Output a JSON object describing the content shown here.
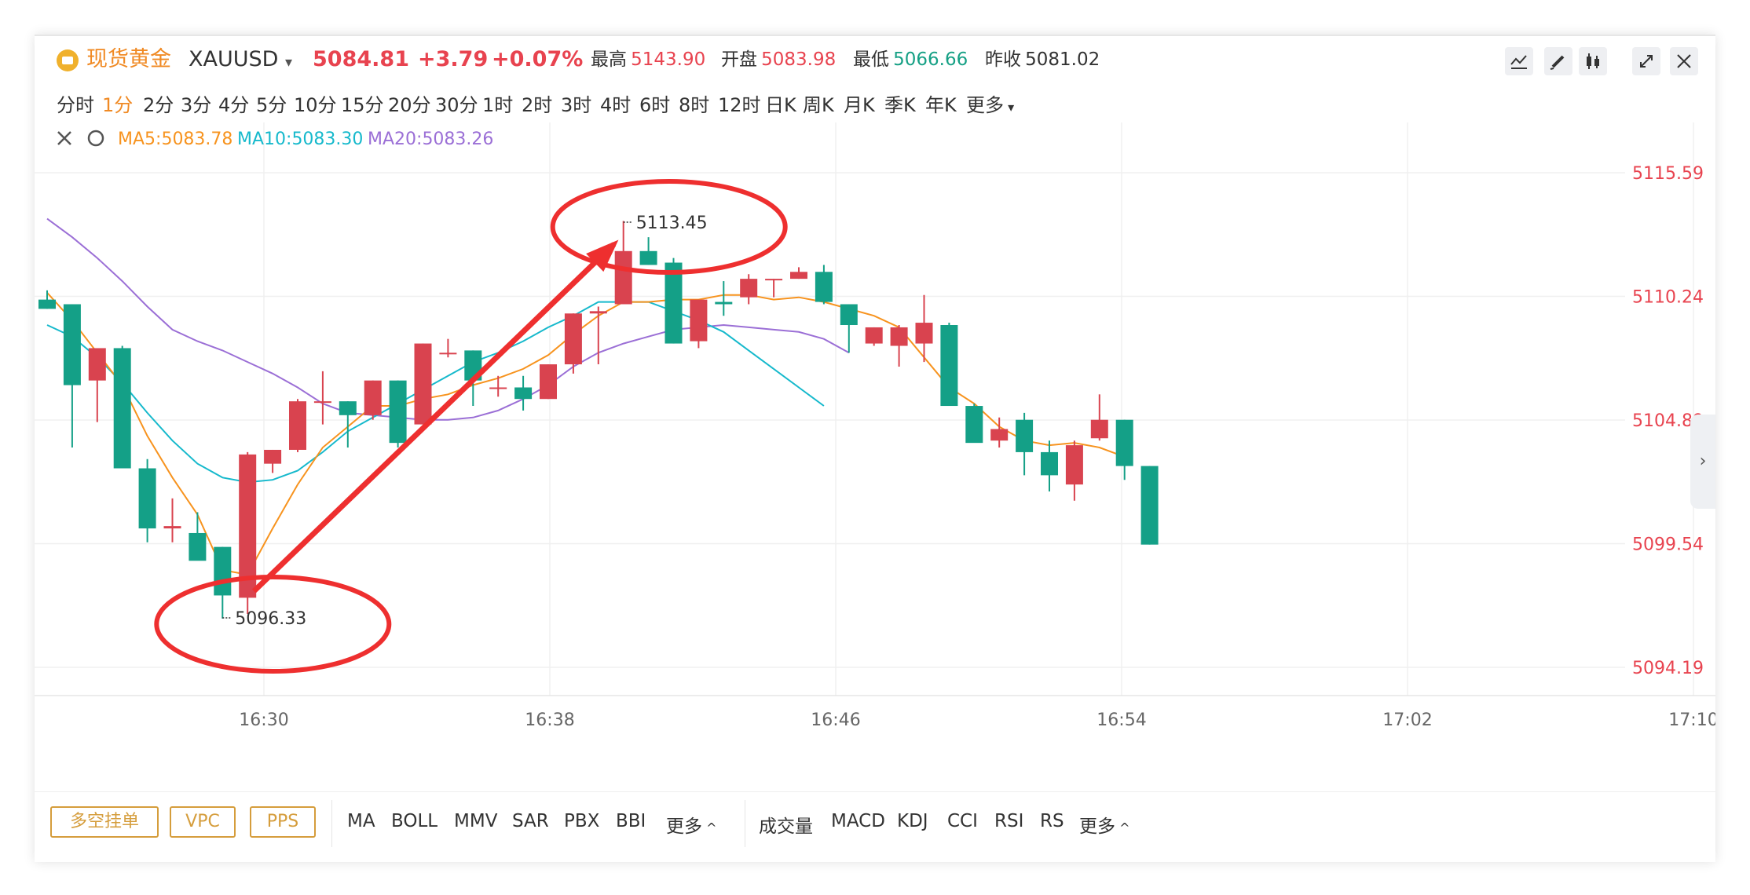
{
  "header": {
    "title": "现货黄金",
    "symbol": "XAUUSD",
    "price": "5084.81",
    "change": "+3.79",
    "change_pct": "+0.07%",
    "stats": [
      {
        "label": "最高",
        "value": "5143.90",
        "color": "red"
      },
      {
        "label": "开盘",
        "value": "5083.98",
        "color": "red"
      },
      {
        "label": "最低",
        "value": "5066.66",
        "color": "green"
      },
      {
        "label": "昨收",
        "value": "5081.02",
        "color": "dark"
      }
    ],
    "tools": [
      "indicator-icon",
      "draw-pen-icon",
      "candlestick-icon",
      "collapse-icon",
      "close-icon"
    ]
  },
  "periods": [
    "分时",
    "1分",
    "2分",
    "3分",
    "4分",
    "5分",
    "10分",
    "15分",
    "20分",
    "30分",
    "1时",
    "2时",
    "3时",
    "4时",
    "6时",
    "8时",
    "12时",
    "日K",
    "周K",
    "月K",
    "季K",
    "年K",
    "更多"
  ],
  "active_period": "1分",
  "ma_legend": [
    {
      "label": "MA5:5083.78",
      "color": "#f7931e"
    },
    {
      "label": "MA10:5083.30",
      "color": "#16b9cc"
    },
    {
      "label": "MA20:5083.26",
      "color": "#9b6fd6"
    }
  ],
  "toolbar": {
    "pills": [
      "多空挂单",
      "VPC",
      "PPS"
    ],
    "main_indicators": [
      "MA",
      "BOLL",
      "MMV",
      "SAR",
      "PBX",
      "BBI",
      "更多"
    ],
    "sub_indicators": [
      "成交量",
      "MACD",
      "KDJ",
      "CCI",
      "RSI",
      "RS",
      "更多"
    ]
  },
  "chart_data": {
    "type": "candlestick",
    "x_ticks": [
      "16:30",
      "16:38",
      "16:46",
      "16:54",
      "17:02",
      "17:10"
    ],
    "y_ticks": [
      5115.59,
      5110.24,
      5104.89,
      5099.54,
      5094.19
    ],
    "ylim": [
      5094.19,
      5115.59
    ],
    "annotations": [
      {
        "text": "5096.33",
        "value": 5096.33
      },
      {
        "text": "5113.45",
        "value": 5113.45
      }
    ],
    "candles": [
      {
        "o": 5110.1,
        "h": 5110.5,
        "l": 5109.7,
        "c": 5109.7
      },
      {
        "o": 5109.9,
        "h": 5109.9,
        "l": 5103.7,
        "c": 5106.4
      },
      {
        "o": 5106.6,
        "h": 5108.0,
        "l": 5104.8,
        "c": 5108.0
      },
      {
        "o": 5108.0,
        "h": 5108.1,
        "l": 5102.8,
        "c": 5102.8
      },
      {
        "o": 5102.8,
        "h": 5103.2,
        "l": 5099.6,
        "c": 5100.2
      },
      {
        "o": 5100.2,
        "h": 5101.5,
        "l": 5099.6,
        "c": 5100.3
      },
      {
        "o": 5100.0,
        "h": 5100.9,
        "l": 5098.9,
        "c": 5098.8
      },
      {
        "o": 5099.4,
        "h": 5099.4,
        "l": 5096.3,
        "c": 5097.3
      },
      {
        "o": 5097.2,
        "h": 5103.5,
        "l": 5096.5,
        "c": 5103.4
      },
      {
        "o": 5103.0,
        "h": 5103.6,
        "l": 5102.6,
        "c": 5103.6
      },
      {
        "o": 5103.6,
        "h": 5105.8,
        "l": 5103.5,
        "c": 5105.7
      },
      {
        "o": 5105.7,
        "h": 5107.0,
        "l": 5104.7,
        "c": 5105.7
      },
      {
        "o": 5105.7,
        "h": 5105.7,
        "l": 5103.7,
        "c": 5105.1
      },
      {
        "o": 5105.1,
        "h": 5106.6,
        "l": 5104.9,
        "c": 5106.6
      },
      {
        "o": 5106.6,
        "h": 5106.6,
        "l": 5103.7,
        "c": 5103.9
      },
      {
        "o": 5104.7,
        "h": 5108.2,
        "l": 5104.7,
        "c": 5108.2
      },
      {
        "o": 5107.8,
        "h": 5108.4,
        "l": 5107.6,
        "c": 5107.8
      },
      {
        "o": 5107.9,
        "h": 5107.9,
        "l": 5105.5,
        "c": 5106.6
      },
      {
        "o": 5106.3,
        "h": 5106.8,
        "l": 5105.9,
        "c": 5106.3
      },
      {
        "o": 5106.3,
        "h": 5106.8,
        "l": 5105.3,
        "c": 5105.8
      },
      {
        "o": 5105.8,
        "h": 5107.3,
        "l": 5105.8,
        "c": 5107.3
      },
      {
        "o": 5107.3,
        "h": 5109.5,
        "l": 5106.9,
        "c": 5109.5
      },
      {
        "o": 5109.5,
        "h": 5109.8,
        "l": 5107.3,
        "c": 5109.6
      },
      {
        "o": 5109.9,
        "h": 5113.5,
        "l": 5109.9,
        "c": 5112.2
      },
      {
        "o": 5112.2,
        "h": 5112.8,
        "l": 5111.6,
        "c": 5111.6
      },
      {
        "o": 5111.7,
        "h": 5111.9,
        "l": 5108.2,
        "c": 5108.2
      },
      {
        "o": 5108.3,
        "h": 5110.1,
        "l": 5108.0,
        "c": 5110.1
      },
      {
        "o": 5110.0,
        "h": 5110.9,
        "l": 5109.4,
        "c": 5109.9
      },
      {
        "o": 5110.2,
        "h": 5111.2,
        "l": 5109.9,
        "c": 5111.0
      },
      {
        "o": 5111.0,
        "h": 5111.0,
        "l": 5110.2,
        "c": 5111.0
      },
      {
        "o": 5111.0,
        "h": 5111.5,
        "l": 5111.0,
        "c": 5111.3
      },
      {
        "o": 5111.3,
        "h": 5111.6,
        "l": 5109.9,
        "c": 5110.0
      },
      {
        "o": 5109.9,
        "h": 5109.9,
        "l": 5107.8,
        "c": 5109.0
      },
      {
        "o": 5108.2,
        "h": 5108.9,
        "l": 5108.1,
        "c": 5108.9
      },
      {
        "o": 5108.1,
        "h": 5109.0,
        "l": 5107.2,
        "c": 5108.9
      },
      {
        "o": 5108.2,
        "h": 5110.3,
        "l": 5107.4,
        "c": 5109.1
      },
      {
        "o": 5109.0,
        "h": 5109.1,
        "l": 5105.5,
        "c": 5105.5
      },
      {
        "o": 5105.5,
        "h": 5105.6,
        "l": 5104.0,
        "c": 5103.9
      },
      {
        "o": 5104.0,
        "h": 5105.0,
        "l": 5103.7,
        "c": 5104.5
      },
      {
        "o": 5104.9,
        "h": 5105.2,
        "l": 5102.5,
        "c": 5103.5
      },
      {
        "o": 5103.5,
        "h": 5104.0,
        "l": 5101.8,
        "c": 5102.5
      },
      {
        "o": 5102.1,
        "h": 5104.0,
        "l": 5101.4,
        "c": 5103.8
      },
      {
        "o": 5104.1,
        "h": 5106.0,
        "l": 5104.0,
        "c": 5104.9
      },
      {
        "o": 5104.9,
        "h": 5104.9,
        "l": 5102.3,
        "c": 5102.9
      },
      {
        "o": 5102.9,
        "h": 5102.9,
        "l": 5099.5,
        "c": 5099.5
      }
    ],
    "ma5": [
      5110.4,
      5109.2,
      5107.8,
      5106.4,
      5104.2,
      5102.4,
      5100.8,
      5098.4,
      5098.2,
      5100.2,
      5102.1,
      5103.7,
      5104.6,
      5105.5,
      5105.5,
      5105.8,
      5106.0,
      5106.4,
      5106.7,
      5107.1,
      5107.7,
      5108.6,
      5109.4,
      5110.0,
      5110.0,
      5110.1,
      5110.1,
      5110.3,
      5110.3,
      5110.1,
      5110.2,
      5110.0,
      5109.7,
      5109.4,
      5108.9,
      5107.6,
      5106.3,
      5105.6,
      5104.6,
      5104.0,
      5103.8,
      5103.9,
      5103.7,
      5103.3
    ],
    "ma10": [
      5109.0,
      5108.5,
      5107.6,
      5106.5,
      5105.2,
      5104.0,
      5103.0,
      5102.4,
      5102.2,
      5102.3,
      5102.7,
      5103.5,
      5104.4,
      5105.0,
      5105.6,
      5106.2,
      5106.8,
      5107.4,
      5107.8,
      5108.3,
      5108.9,
      5109.4,
      5110.0,
      5110.0,
      5110.0,
      5109.6,
      5109.2,
      5108.7,
      5107.9,
      5107.1,
      5106.3,
      5105.5
    ],
    "ma20": [
      5113.6,
      5112.8,
      5111.9,
      5110.9,
      5109.8,
      5108.8,
      5108.3,
      5107.9,
      5107.4,
      5106.9,
      5106.3,
      5105.6,
      5105.2,
      5105.1,
      5105.0,
      5104.9,
      5104.9,
      5105.0,
      5105.3,
      5105.8,
      5106.4,
      5107.2,
      5107.8,
      5108.2,
      5108.5,
      5108.8,
      5108.9,
      5109.0,
      5108.9,
      5108.8,
      5108.7,
      5108.4,
      5107.8
    ]
  }
}
